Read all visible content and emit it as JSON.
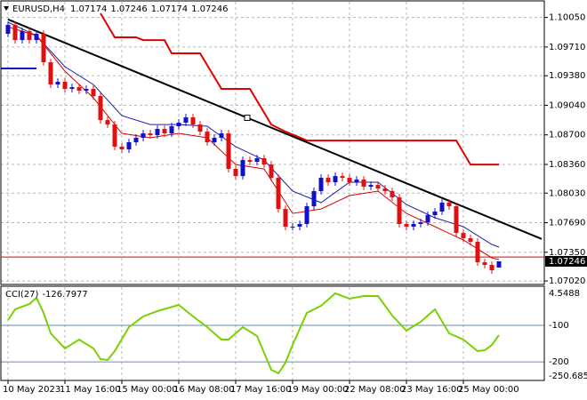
{
  "chart_data": [
    {
      "type": "candlestick",
      "symbol": "EURUSD,H4",
      "categories": [
        "10 May 2023",
        null,
        null,
        null,
        null,
        null,
        null,
        null,
        "11 May 16:00",
        null,
        null,
        null,
        null,
        null,
        null,
        null,
        "15 May 00:00",
        null,
        null,
        null,
        null,
        null,
        null,
        null,
        "16 May 08:00",
        null,
        null,
        null,
        null,
        null,
        null,
        null,
        "17 May 16:00",
        null,
        null,
        null,
        null,
        null,
        null,
        null,
        "19 May 00:00",
        null,
        null,
        null,
        null,
        null,
        null,
        null,
        "22 May 08:00",
        null,
        null,
        null,
        null,
        null,
        null,
        null,
        "23 May 16:00",
        null,
        null,
        null,
        null,
        null,
        null,
        null,
        "25 May 00:00",
        null,
        null,
        null,
        null,
        null
      ],
      "open": [
        1.09862,
        1.09964,
        1.0979,
        1.09892,
        1.0979,
        1.09862,
        1.09535,
        1.09279,
        1.0931,
        1.09228,
        1.09248,
        1.09208,
        1.09228,
        1.09146,
        1.0887,
        1.08819,
        1.08564,
        1.08533,
        1.08615,
        1.08666,
        1.08717,
        1.08697,
        1.08768,
        1.08717,
        1.08799,
        1.0884,
        1.08901,
        1.08819,
        1.08737,
        1.08615,
        1.08666,
        1.08717,
        1.08308,
        1.08226,
        1.0841,
        1.0839,
        1.08431,
        1.08359,
        1.08206,
        1.07848,
        1.07644,
        1.07644,
        1.07675,
        1.07879,
        1.08053,
        1.08206,
        1.08155,
        1.08226,
        1.08206,
        1.08155,
        1.08186,
        1.08104,
        1.08124,
        1.08083,
        1.08053,
        1.07981,
        1.07675,
        1.07644,
        1.07675,
        1.07695,
        1.07777,
        1.07818,
        1.0792,
        1.07879,
        1.07572,
        1.07511,
        1.0747,
        1.07235,
        1.07204,
        1.07174
      ],
      "high": [
        1.10004,
        1.10004,
        1.09932,
        1.09932,
        1.09902,
        1.09902,
        1.09575,
        1.0935,
        1.0935,
        1.09288,
        1.09288,
        1.09268,
        1.09268,
        1.09186,
        1.0891,
        1.08859,
        1.08604,
        1.08655,
        1.08706,
        1.08757,
        1.08757,
        1.08808,
        1.08808,
        1.08839,
        1.0888,
        1.08941,
        1.08941,
        1.08859,
        1.08777,
        1.08706,
        1.08757,
        1.08757,
        1.08348,
        1.0845,
        1.0845,
        1.08471,
        1.08471,
        1.08399,
        1.08246,
        1.07888,
        1.07684,
        1.07715,
        1.07919,
        1.08093,
        1.08246,
        1.08246,
        1.08266,
        1.08266,
        1.08246,
        1.08226,
        1.08226,
        1.08164,
        1.08164,
        1.08123,
        1.08093,
        1.08021,
        1.07715,
        1.07715,
        1.07735,
        1.07817,
        1.07858,
        1.0796,
        1.0796,
        1.07919,
        1.07612,
        1.07551,
        1.0751,
        1.07275,
        1.07244,
        1.07246
      ],
      "low": [
        1.09822,
        1.0975,
        1.0975,
        1.0975,
        1.0975,
        1.09495,
        1.09239,
        1.09239,
        1.09188,
        1.09188,
        1.09168,
        1.09168,
        1.09106,
        1.0883,
        1.08779,
        1.08524,
        1.08493,
        1.08493,
        1.08575,
        1.08626,
        1.08657,
        1.08657,
        1.08677,
        1.08677,
        1.08759,
        1.088,
        1.08779,
        1.08697,
        1.08575,
        1.08575,
        1.08626,
        1.08268,
        1.08186,
        1.08186,
        1.0835,
        1.0835,
        1.08319,
        1.08166,
        1.07808,
        1.07604,
        1.07604,
        1.07604,
        1.07635,
        1.07839,
        1.08013,
        1.08115,
        1.08115,
        1.08166,
        1.08115,
        1.08115,
        1.08064,
        1.08064,
        1.08043,
        1.08013,
        1.07941,
        1.07635,
        1.07604,
        1.07604,
        1.07635,
        1.07655,
        1.07737,
        1.07778,
        1.07839,
        1.07532,
        1.07471,
        1.0743,
        1.07195,
        1.07164,
        1.07103,
        1.07174
      ],
      "close": [
        1.09964,
        1.0979,
        1.09892,
        1.0979,
        1.09862,
        1.09535,
        1.09279,
        1.0931,
        1.09228,
        1.09248,
        1.09208,
        1.09228,
        1.09146,
        1.0887,
        1.08819,
        1.08564,
        1.08533,
        1.08615,
        1.08666,
        1.08717,
        1.08697,
        1.08768,
        1.08717,
        1.08799,
        1.0884,
        1.08901,
        1.08819,
        1.08737,
        1.08615,
        1.08666,
        1.08717,
        1.08308,
        1.08226,
        1.0841,
        1.0839,
        1.08431,
        1.08359,
        1.08206,
        1.07848,
        1.07644,
        1.07644,
        1.07675,
        1.07879,
        1.08053,
        1.08206,
        1.08155,
        1.08226,
        1.08206,
        1.08155,
        1.08186,
        1.08104,
        1.08124,
        1.08083,
        1.08053,
        1.07981,
        1.07675,
        1.07644,
        1.07675,
        1.07695,
        1.07777,
        1.07818,
        1.0792,
        1.07879,
        1.07572,
        1.07511,
        1.0747,
        1.07235,
        1.07204,
        1.07143,
        1.07246
      ],
      "up_color": "#1010c8",
      "down_color": "#e01010",
      "ylim": [
        1.0698,
        1.1023
      ],
      "yticks": [
        {
          "value": 1.1005,
          "label": "1.10050"
        },
        {
          "value": 1.0971,
          "label": "1.09710"
        },
        {
          "value": 1.0938,
          "label": "1.09380"
        },
        {
          "value": 1.0904,
          "label": "1.09040"
        },
        {
          "value": 1.087,
          "label": "1.08700"
        },
        {
          "value": 1.0836,
          "label": "1.08360"
        },
        {
          "value": 1.0803,
          "label": "1.08030"
        },
        {
          "value": 1.0769,
          "label": "1.07690"
        },
        {
          "value": 1.0735,
          "label": "1.07350"
        },
        {
          "value": 1.0702,
          "label": "1.07020"
        }
      ],
      "grid": true,
      "lines": [
        {
          "color": "#1c1ca8",
          "width": 1,
          "x": [
            0,
            4,
            8,
            12,
            16,
            20,
            24,
            28,
            32,
            36,
            40,
            44,
            48,
            52,
            56,
            60,
            64,
            68,
            69
          ],
          "values": [
            1.09995,
            1.09841,
            1.09484,
            1.09279,
            1.08921,
            1.08819,
            1.08819,
            1.08799,
            1.08564,
            1.0841,
            1.08053,
            1.0792,
            1.08155,
            1.08155,
            1.07899,
            1.07746,
            1.07644,
            1.0744,
            1.07409
          ]
        },
        {
          "color": "#e00000",
          "width": 1,
          "x": [
            0,
            4,
            8,
            12,
            16,
            20,
            24,
            28,
            32,
            36,
            40,
            44,
            48,
            52,
            56,
            60,
            64,
            68,
            69
          ],
          "values": [
            1.09943,
            1.09841,
            1.09432,
            1.09126,
            1.08717,
            1.08666,
            1.08717,
            1.08666,
            1.08359,
            1.08308,
            1.07797,
            1.07848,
            1.08002,
            1.08053,
            1.07797,
            1.07644,
            1.07491,
            1.07286,
            1.07266
          ]
        },
        {
          "color": "#e00000",
          "width": 2,
          "x": [
            13,
            15,
            18,
            19,
            22,
            23,
            27,
            30,
            34,
            37,
            39,
            42,
            63,
            65,
            69
          ],
          "values": [
            1.10097,
            1.09821,
            1.09821,
            1.0979,
            1.0979,
            1.09637,
            1.09637,
            1.09228,
            1.09228,
            1.08819,
            1.08737,
            1.08635,
            1.08635,
            1.08359,
            1.08359
          ]
        },
        {
          "color": "#000000",
          "width": 2,
          "x": [
            0,
            33.625,
            75
          ],
          "values": [
            1.10028,
            1.08896,
            1.07503
          ]
        },
        {
          "color": "#1010c8",
          "width": 2,
          "x": [
            -1,
            4
          ],
          "values": [
            1.09463,
            1.09463
          ]
        }
      ],
      "ask_line": 1.07296,
      "ask_color": "#e00000"
    },
    {
      "type": "line",
      "title": "CCI(27)",
      "color": "#7ad000",
      "x": [
        0,
        1,
        3,
        4,
        5,
        6,
        8,
        10,
        12,
        13,
        14,
        15,
        17,
        19,
        21,
        24,
        26,
        28,
        30,
        31,
        33,
        35,
        37,
        38,
        39,
        40,
        42,
        44,
        46,
        48,
        50,
        52,
        54,
        56,
        58,
        60,
        62,
        64,
        66,
        67,
        68,
        69
      ],
      "values": [
        -85.4,
        -56.2,
        -41.6,
        -24.6,
        -65.9,
        -121.9,
        -163.2,
        -138.9,
        -163.2,
        -192.3,
        -194.8,
        -170.5,
        -104.8,
        -75.7,
        -61.1,
        -44.1,
        -75.7,
        -104.8,
        -138.9,
        -138.9,
        -104.8,
        -129.1,
        -221.5,
        -231.2,
        -202.1,
        -153.5,
        -65.9,
        -46.5,
        -12.5,
        -27.1,
        -19.8,
        -19.8,
        -73.2,
        -114.6,
        -90.3,
        -56.2,
        -121.9,
        -138.9,
        -170.5,
        -168.0,
        -153.5,
        -126.7977
      ],
      "ylim": [
        -250.6856,
        4.5488
      ],
      "yticks": [
        -100,
        -200
      ],
      "level_color": "#6a8ab0"
    }
  ]
}
